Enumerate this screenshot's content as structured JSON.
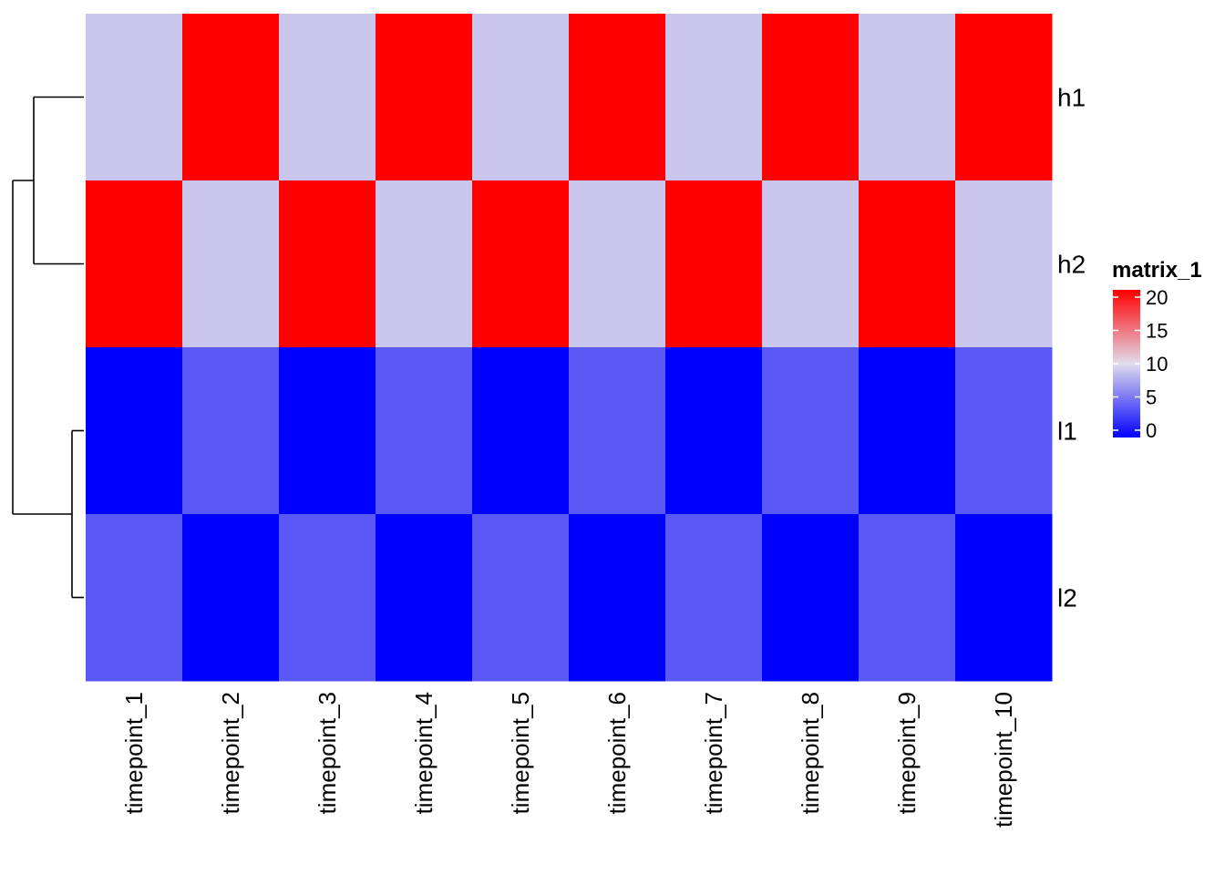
{
  "chart_data": {
    "type": "heatmap",
    "title": "",
    "xlabel": "",
    "ylabel": "",
    "rows": [
      "h1",
      "h2",
      "l1",
      "l2"
    ],
    "columns": [
      "timepoint_1",
      "timepoint_2",
      "timepoint_3",
      "timepoint_4",
      "timepoint_5",
      "timepoint_6",
      "timepoint_7",
      "timepoint_8",
      "timepoint_9",
      "timepoint_10"
    ],
    "values": [
      [
        9,
        20,
        9,
        20,
        9,
        20,
        9,
        20,
        9,
        20
      ],
      [
        20,
        9,
        20,
        9,
        20,
        9,
        20,
        9,
        20,
        9
      ],
      [
        0,
        4,
        0,
        4,
        0,
        4,
        0,
        4,
        0,
        4
      ],
      [
        4,
        0,
        4,
        0,
        4,
        0,
        4,
        0,
        4,
        0
      ]
    ],
    "row_dendrogram": {
      "show": true,
      "side": "left",
      "merges": [
        {
          "pair": [
            "h1",
            "h2"
          ]
        },
        {
          "pair": [
            "l1",
            "l2"
          ]
        },
        {
          "pair": [
            "h1-h2",
            "l1-l2"
          ]
        }
      ]
    },
    "color_scale": {
      "min": 0,
      "mid": 10,
      "max": 20,
      "low_color": "#0000ff",
      "mid_color": "#e1dcec",
      "high_color": "#ff0000"
    },
    "legend": {
      "title": "matrix_1",
      "placement": "right",
      "ticks": [
        0,
        5,
        10,
        15,
        20
      ]
    }
  }
}
